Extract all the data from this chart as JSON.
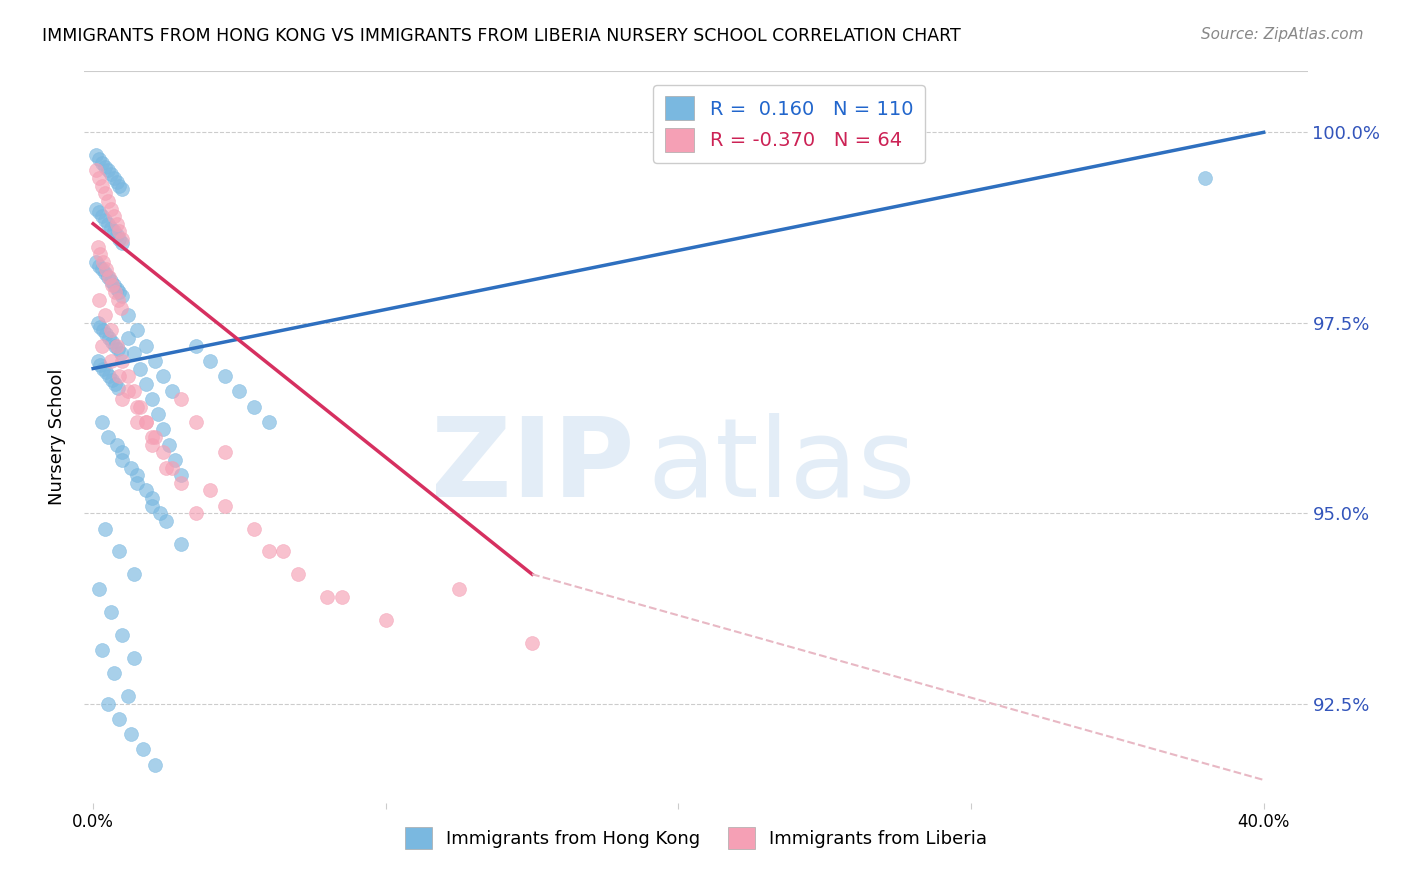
{
  "title": "IMMIGRANTS FROM HONG KONG VS IMMIGRANTS FROM LIBERIA NURSERY SCHOOL CORRELATION CHART",
  "source": "Source: ZipAtlas.com",
  "ylabel": "Nursery School",
  "ymin": 91.2,
  "ymax": 100.8,
  "xmin": -0.3,
  "xmax": 41.5,
  "hk_color": "#7ab8e0",
  "hk_line_color": "#2E6FBF",
  "lib_color": "#f5a0b5",
  "lib_line_color": "#d63060",
  "lib_dash_color": "#e8b8c4",
  "scatter_alpha": 0.65,
  "scatter_size": 100,
  "hk_line_x0": 0.0,
  "hk_line_x1": 40.0,
  "hk_line_y0": 96.9,
  "hk_line_y1": 100.0,
  "lib_line_x0": 0.0,
  "lib_line_y0": 98.8,
  "lib_solid_x1": 15.0,
  "lib_solid_y1": 94.2,
  "lib_dash_x1": 40.0,
  "lib_dash_y1": 91.5,
  "hk_points_x": [
    0.1,
    0.2,
    0.3,
    0.4,
    0.5,
    0.6,
    0.7,
    0.8,
    0.9,
    1.0,
    0.1,
    0.2,
    0.3,
    0.4,
    0.5,
    0.6,
    0.7,
    0.8,
    0.9,
    1.0,
    0.1,
    0.2,
    0.3,
    0.4,
    0.5,
    0.6,
    0.7,
    0.8,
    0.9,
    1.0,
    0.15,
    0.25,
    0.35,
    0.45,
    0.55,
    0.65,
    0.75,
    0.85,
    0.95,
    0.15,
    0.25,
    0.35,
    0.45,
    0.55,
    0.65,
    0.75,
    0.85,
    1.2,
    1.4,
    1.6,
    1.8,
    2.0,
    2.2,
    2.4,
    2.6,
    2.8,
    3.0,
    1.2,
    1.5,
    1.8,
    2.1,
    2.4,
    2.7,
    3.5,
    4.0,
    4.5,
    5.0,
    5.5,
    6.0,
    1.0,
    1.5,
    2.0,
    2.5,
    3.0,
    0.5,
    1.0,
    1.5,
    2.0,
    0.3,
    0.8,
    1.3,
    1.8,
    2.3,
    0.4,
    0.9,
    1.4,
    0.2,
    0.6,
    1.0,
    1.4,
    0.3,
    0.7,
    1.2,
    0.5,
    0.9,
    1.3,
    1.7,
    2.1,
    38.0
  ],
  "hk_points_y": [
    99.7,
    99.65,
    99.6,
    99.55,
    99.5,
    99.45,
    99.4,
    99.35,
    99.3,
    99.25,
    99.0,
    98.95,
    98.9,
    98.85,
    98.8,
    98.75,
    98.7,
    98.65,
    98.6,
    98.55,
    98.3,
    98.25,
    98.2,
    98.15,
    98.1,
    98.05,
    98.0,
    97.95,
    97.9,
    97.85,
    97.5,
    97.45,
    97.4,
    97.35,
    97.3,
    97.25,
    97.2,
    97.15,
    97.1,
    97.0,
    96.95,
    96.9,
    96.85,
    96.8,
    96.75,
    96.7,
    96.65,
    97.3,
    97.1,
    96.9,
    96.7,
    96.5,
    96.3,
    96.1,
    95.9,
    95.7,
    95.5,
    97.6,
    97.4,
    97.2,
    97.0,
    96.8,
    96.6,
    97.2,
    97.0,
    96.8,
    96.6,
    96.4,
    96.2,
    95.8,
    95.5,
    95.2,
    94.9,
    94.6,
    96.0,
    95.7,
    95.4,
    95.1,
    96.2,
    95.9,
    95.6,
    95.3,
    95.0,
    94.8,
    94.5,
    94.2,
    94.0,
    93.7,
    93.4,
    93.1,
    93.2,
    92.9,
    92.6,
    92.5,
    92.3,
    92.1,
    91.9,
    91.7,
    99.4
  ],
  "lib_points_x": [
    0.1,
    0.2,
    0.3,
    0.4,
    0.5,
    0.6,
    0.7,
    0.8,
    0.9,
    1.0,
    0.15,
    0.25,
    0.35,
    0.45,
    0.55,
    0.65,
    0.75,
    0.85,
    0.95,
    0.2,
    0.4,
    0.6,
    0.8,
    1.0,
    1.2,
    1.4,
    1.6,
    1.8,
    2.0,
    0.3,
    0.6,
    0.9,
    1.2,
    1.5,
    1.8,
    2.1,
    2.4,
    2.7,
    3.0,
    1.0,
    1.5,
    2.0,
    2.5,
    3.5,
    4.0,
    4.5,
    5.5,
    6.0,
    7.0,
    8.0,
    10.0,
    12.5,
    15.0,
    3.0,
    3.5,
    4.5,
    6.5,
    8.5
  ],
  "lib_points_y": [
    99.5,
    99.4,
    99.3,
    99.2,
    99.1,
    99.0,
    98.9,
    98.8,
    98.7,
    98.6,
    98.5,
    98.4,
    98.3,
    98.2,
    98.1,
    98.0,
    97.9,
    97.8,
    97.7,
    97.8,
    97.6,
    97.4,
    97.2,
    97.0,
    96.8,
    96.6,
    96.4,
    96.2,
    96.0,
    97.2,
    97.0,
    96.8,
    96.6,
    96.4,
    96.2,
    96.0,
    95.8,
    95.6,
    95.4,
    96.5,
    96.2,
    95.9,
    95.6,
    95.0,
    95.3,
    95.1,
    94.8,
    94.5,
    94.2,
    93.9,
    93.6,
    94.0,
    93.3,
    96.5,
    96.2,
    95.8,
    94.5,
    93.9
  ]
}
